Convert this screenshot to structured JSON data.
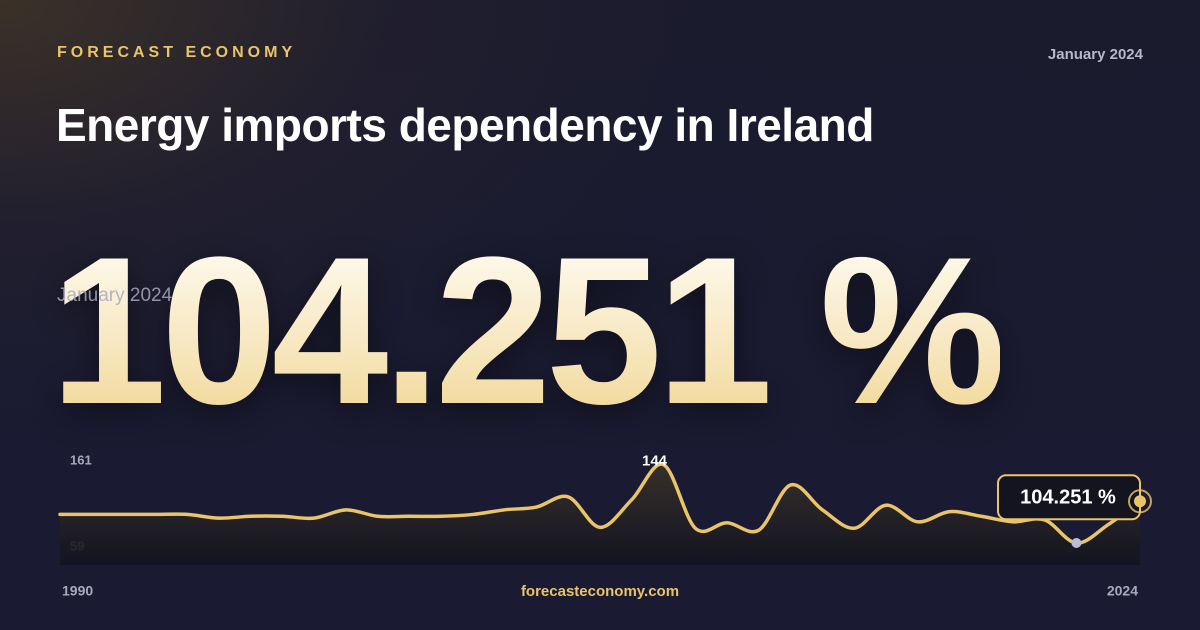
{
  "brand": "FORECAST ECONOMY",
  "date": "January 2024",
  "footer": "forecasteconomy.com",
  "chart_data": {
    "type": "line",
    "title": "Energy imports dependency in Ireland",
    "x": [
      1990,
      1991,
      1992,
      1993,
      1994,
      1995,
      1996,
      1997,
      1998,
      1999,
      2000,
      2001,
      2002,
      2003,
      2004,
      2005,
      2006,
      2007,
      2008,
      2009,
      2010,
      2011,
      2012,
      2013,
      2014,
      2015,
      2016,
      2017,
      2018,
      2019,
      2020,
      2021,
      2022,
      2023,
      2024
    ],
    "xlim": [
      1990,
      2024
    ],
    "xticks": [
      1990,
      2024
    ],
    "ylim": [
      59,
      161
    ],
    "yticks": [
      59,
      161
    ],
    "series": [
      {
        "name": "Energy imports dependency",
        "color": "#e9c46a",
        "values": [
          90,
          90,
          90,
          90,
          90,
          86,
          88,
          88,
          86,
          95,
          88,
          88,
          88,
          90,
          95,
          98,
          109,
          76,
          106,
          144,
          75,
          81,
          73,
          122,
          95,
          75,
          100,
          82,
          93,
          88,
          82,
          84,
          59,
          79,
          104.251
        ],
        "value_labels": [
          null,
          null,
          null,
          null,
          null,
          null,
          null,
          null,
          null,
          null,
          null,
          null,
          null,
          null,
          null,
          null,
          null,
          null,
          null,
          "144",
          null,
          null,
          null,
          null,
          null,
          null,
          null,
          null,
          null,
          null,
          null,
          null,
          null,
          null,
          "104.251 %"
        ]
      }
    ]
  }
}
